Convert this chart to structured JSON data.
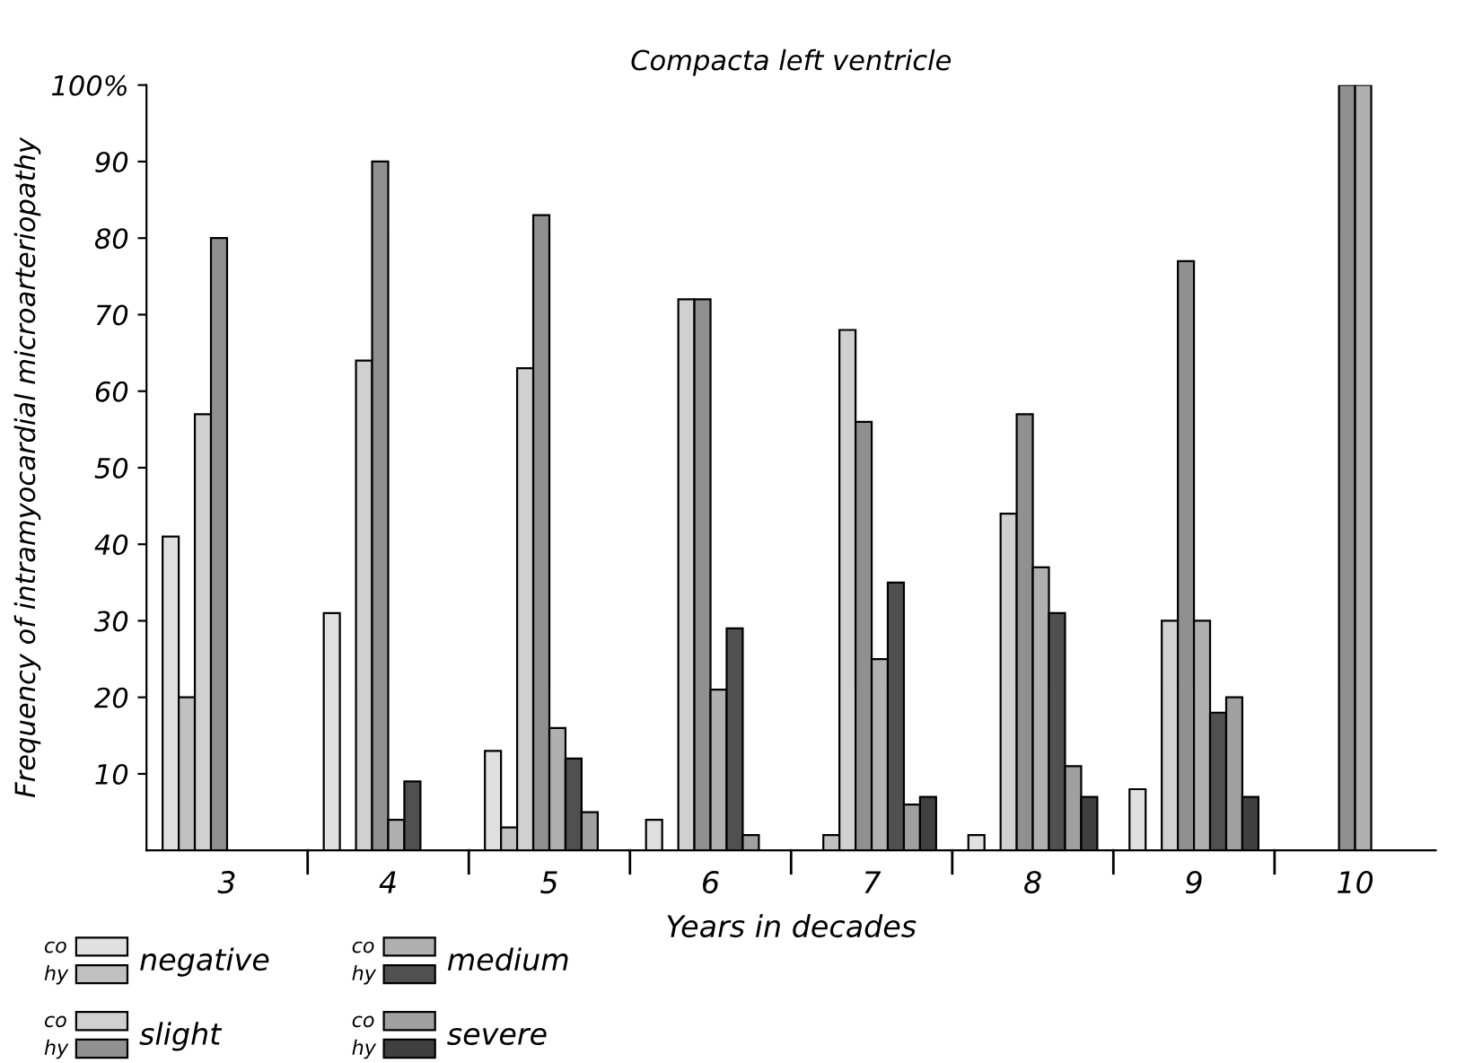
{
  "chart_data": {
    "type": "bar",
    "title": "Compacta left ventricle",
    "xlabel": "Years in decades",
    "ylabel": "Frequency of intramyocardial microarteriopathy",
    "categories": [
      "3",
      "4",
      "5",
      "6",
      "7",
      "8",
      "9",
      "10"
    ],
    "series": [
      {
        "name": "negative",
        "color": "#e0e0e0",
        "values": [
          41,
          31,
          13,
          4,
          null,
          2,
          8,
          null
        ]
      },
      {
        "color": "#c0c0c0",
        "values": [
          20,
          null,
          3,
          null,
          2,
          null,
          null,
          null
        ]
      },
      {
        "name": "slight",
        "color": "#d0d0d0",
        "values": [
          57,
          64,
          63,
          72,
          68,
          44,
          30,
          null
        ]
      },
      {
        "color": "#909090",
        "values": [
          80,
          90,
          83,
          72,
          56,
          57,
          77,
          100
        ]
      },
      {
        "name": "medium",
        "color": "#b0b0b0",
        "values": [
          null,
          4,
          16,
          21,
          25,
          37,
          30,
          100
        ]
      },
      {
        "color": "#505050",
        "values": [
          null,
          9,
          12,
          29,
          35,
          31,
          18,
          null
        ]
      },
      {
        "name": "severe",
        "color": "#a0a0a0",
        "values": [
          null,
          null,
          5,
          2,
          6,
          11,
          20,
          null
        ]
      },
      {
        "color": "#404040",
        "values": [
          null,
          null,
          null,
          null,
          7,
          7,
          7,
          null
        ]
      }
    ],
    "annotations": [
      "co",
      "hy"
    ],
    "ylim": [
      0,
      100
    ],
    "yticks": [
      10,
      20,
      30,
      40,
      50,
      60,
      70,
      80,
      90,
      {
        "value": 100,
        "label": "100%"
      }
    ],
    "grid": false,
    "legend": "bottom left"
  }
}
